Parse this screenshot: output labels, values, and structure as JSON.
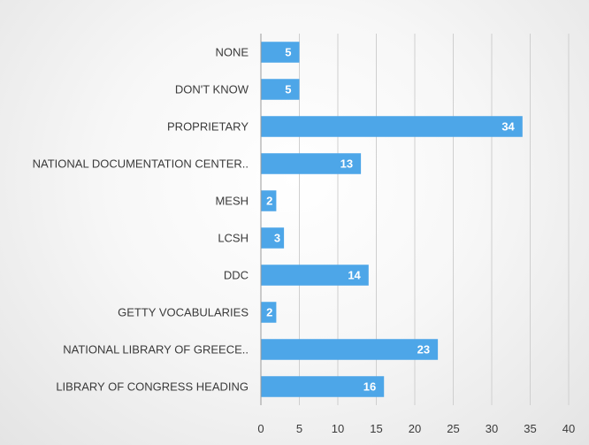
{
  "chart_data": {
    "type": "bar",
    "orientation": "horizontal",
    "title": "",
    "xlabel": "",
    "ylabel": "",
    "categories": [
      "NONE",
      "DON'T KNOW",
      "PROPRIETARY",
      "NATIONAL DOCUMENTATION CENTER..",
      "MESH",
      "LCSH",
      "DDC",
      "GETTY VOCABULARIES",
      "NATIONAL LIBRARY OF GREECE..",
      "LIBRARY OF CONGRESS HEADING"
    ],
    "values": [
      5,
      5,
      34,
      13,
      2,
      3,
      14,
      2,
      23,
      16
    ],
    "xlim": [
      0,
      40
    ],
    "xticks": [
      0,
      5,
      10,
      15,
      20,
      25,
      30,
      35,
      40
    ],
    "bar_color": "#4da6e8",
    "grid": true,
    "data_labels": true,
    "legend": "none"
  }
}
